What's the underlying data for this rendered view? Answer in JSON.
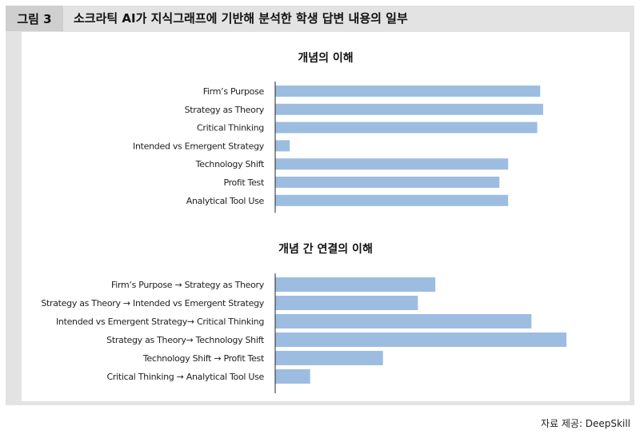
{
  "figure": {
    "label": "그림 3",
    "title": "소크라틱 AI가 지식그래프에 기반해 분석한 학생 답변 내용의 일부"
  },
  "source": "자료 제공: DeepSkill",
  "colors": {
    "bar": "#9dbde0",
    "axis": "#222222",
    "frame": "#e3e3e3",
    "label_box": "#cfcfcf"
  },
  "chart_data": [
    {
      "type": "bar",
      "orientation": "horizontal",
      "title": "개념의 이해",
      "categories": [
        "Firm’s Purpose",
        "Strategy as Theory",
        "Critical Thinking",
        "Intended vs Emergent Strategy",
        "Technology Shift",
        "Profit Test",
        "Analytical Tool Use"
      ],
      "values": [
        0.91,
        0.92,
        0.9,
        0.05,
        0.8,
        0.77,
        0.8
      ],
      "xlim": [
        0,
        1
      ],
      "grid": false,
      "legend": "none"
    },
    {
      "type": "bar",
      "orientation": "horizontal",
      "title": "개념 간 연결의 이해",
      "categories": [
        "Firm’s Purpose → Strategy as Theory",
        "Strategy as Theory → Intended vs Emergent Strategy",
        "Intended vs Emergent Strategy→ Critical Thinking",
        "Strategy as Theory→ Technology Shift",
        "Technology Shift → Profit Test",
        "Critical Thinking → Analytical Tool Use"
      ],
      "values": [
        0.55,
        0.49,
        0.88,
        1.0,
        0.37,
        0.12
      ],
      "xlim": [
        0,
        1
      ],
      "grid": false,
      "legend": "none"
    }
  ]
}
